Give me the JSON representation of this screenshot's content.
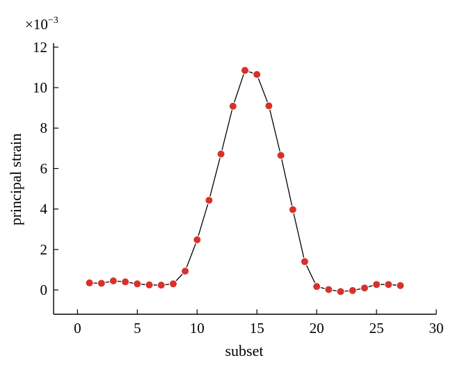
{
  "chart_data": {
    "type": "line",
    "title": "",
    "xlabel": "subset",
    "ylabel": "principal strain",
    "y_scale_note": {
      "base": "×10",
      "exponent": "−3"
    },
    "xlim": [
      -2,
      30
    ],
    "ylim": [
      -1.2,
      12.2
    ],
    "xticks": [
      0,
      5,
      10,
      15,
      20,
      25,
      30
    ],
    "yticks": [
      0,
      2,
      4,
      6,
      8,
      10,
      12
    ],
    "grid": false,
    "legend": "none",
    "colors": {
      "marker": "#d8312c",
      "line": "#000000"
    },
    "series": [
      {
        "x": [
          1,
          2,
          3,
          4,
          5,
          6,
          7,
          8,
          9,
          10,
          11,
          12,
          13,
          14,
          15,
          16,
          17,
          18,
          19,
          20,
          21,
          22,
          23,
          24,
          25,
          26,
          27
        ],
        "values": [
          0.35,
          0.33,
          0.45,
          0.4,
          0.3,
          0.25,
          0.24,
          0.3,
          0.93,
          2.48,
          4.43,
          6.72,
          9.08,
          10.85,
          10.65,
          9.1,
          6.65,
          3.97,
          1.4,
          0.17,
          0.02,
          -0.08,
          -0.03,
          0.1,
          0.27,
          0.27,
          0.22
        ]
      }
    ]
  }
}
